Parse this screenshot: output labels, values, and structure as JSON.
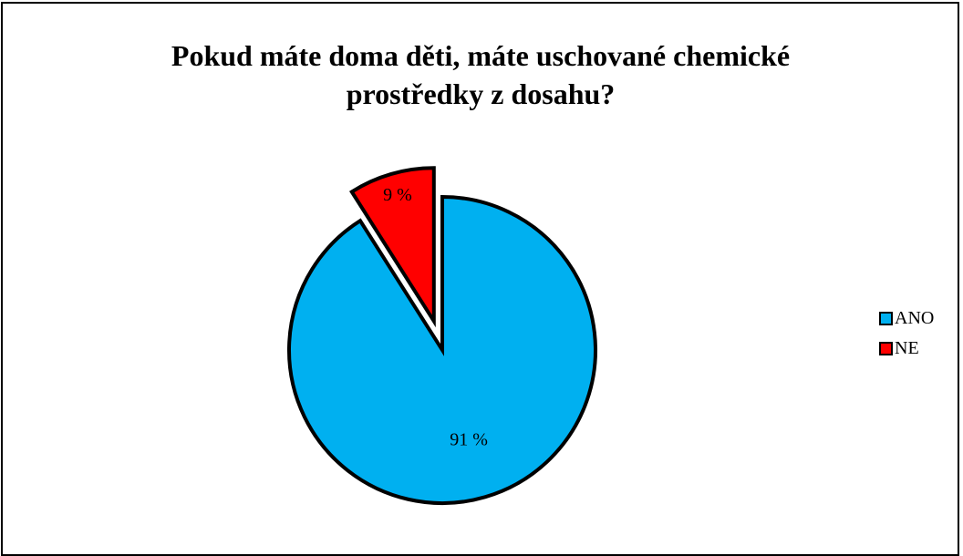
{
  "chart_data": {
    "type": "pie",
    "title_lines": [
      "Pokud máte doma děti, máte uschované chemické",
      "prostředky z dosahu?"
    ],
    "categories": [
      "ANO",
      "NE"
    ],
    "values": [
      91,
      9
    ],
    "data_labels": [
      "91 %",
      "9 %"
    ],
    "colors": [
      "#00B0F0",
      "#FF0000"
    ],
    "outline_color": "#000000",
    "exploded": [
      "NE"
    ],
    "legend_position": "right"
  }
}
